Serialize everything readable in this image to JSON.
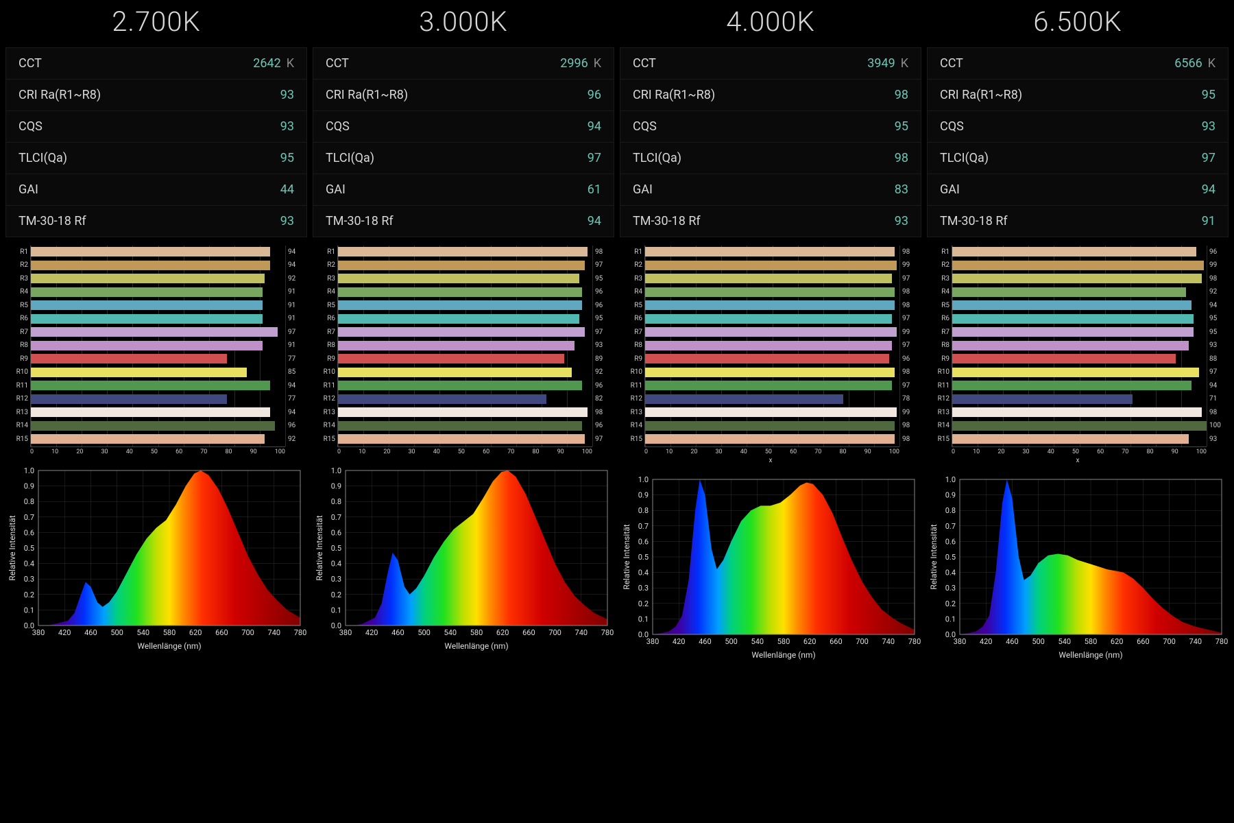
{
  "bar_colors": {
    "R1": "#d8b896",
    "R2": "#c09858",
    "R3": "#c0c060",
    "R4": "#78a860",
    "R5": "#60a8c0",
    "R6": "#50b8b0",
    "R7": "#c0a0d0",
    "R8": "#c090c8",
    "R9": "#d05050",
    "R10": "#e8e060",
    "R11": "#509850",
    "R12": "#404880",
    "R13": "#f0e8e0",
    "R14": "#506840",
    "R15": "#e0b090"
  },
  "bar_xaxis_ticks": [
    0,
    10,
    20,
    30,
    40,
    50,
    60,
    70,
    80,
    90,
    100
  ],
  "metric_labels": {
    "cct": "CCT",
    "cri": "CRI Ra(R1~R8)",
    "cqs": "CQS",
    "tlci": "TLCI(Qa)",
    "gai": "GAI",
    "tm30": "TM-30-18 Rf"
  },
  "spectrum_axes": {
    "xlabel": "Wellenlänge (nm)",
    "ylabel": "Relative Intensität",
    "xmin": 380,
    "xmax": 780,
    "ymin": 0,
    "ymax": 1.0,
    "xticks": [
      380,
      420,
      460,
      500,
      540,
      580,
      620,
      660,
      700,
      740,
      780
    ],
    "yticks": [
      0.0,
      0.1,
      0.2,
      0.3,
      0.4,
      0.5,
      0.6,
      0.7,
      0.8,
      0.9,
      1.0
    ]
  },
  "spectrum_gradient_stops": [
    {
      "nm": 380,
      "c": "#3a0060"
    },
    {
      "nm": 420,
      "c": "#4000a0"
    },
    {
      "nm": 450,
      "c": "#0030ff"
    },
    {
      "nm": 480,
      "c": "#00a0ff"
    },
    {
      "nm": 500,
      "c": "#00d080"
    },
    {
      "nm": 530,
      "c": "#20e020"
    },
    {
      "nm": 560,
      "c": "#c0e000"
    },
    {
      "nm": 580,
      "c": "#ffe000"
    },
    {
      "nm": 600,
      "c": "#ff9000"
    },
    {
      "nm": 630,
      "c": "#ff3000"
    },
    {
      "nm": 680,
      "c": "#d00000"
    },
    {
      "nm": 780,
      "c": "#800000"
    }
  ],
  "columns": [
    {
      "title": "2.700K",
      "metrics": {
        "cct": "2642",
        "cct_unit": "K",
        "cri": "93",
        "cqs": "93",
        "tlci": "95",
        "gai": "44",
        "tm30": "93"
      },
      "bars": {
        "R1": 94,
        "R2": 94,
        "R3": 92,
        "R4": 91,
        "R5": 91,
        "R6": 91,
        "R7": 97,
        "R8": 91,
        "R9": 77,
        "R10": 85,
        "R11": 94,
        "R12": 77,
        "R13": 94,
        "R14": 96,
        "R15": 92
      },
      "bar_xtitle": "",
      "spectrum": [
        [
          380,
          0.0
        ],
        [
          395,
          0.0
        ],
        [
          405,
          0.01
        ],
        [
          415,
          0.02
        ],
        [
          425,
          0.03
        ],
        [
          435,
          0.08
        ],
        [
          445,
          0.2
        ],
        [
          452,
          0.28
        ],
        [
          460,
          0.25
        ],
        [
          470,
          0.15
        ],
        [
          478,
          0.12
        ],
        [
          488,
          0.15
        ],
        [
          500,
          0.22
        ],
        [
          515,
          0.34
        ],
        [
          530,
          0.46
        ],
        [
          545,
          0.56
        ],
        [
          560,
          0.63
        ],
        [
          575,
          0.68
        ],
        [
          590,
          0.78
        ],
        [
          605,
          0.9
        ],
        [
          618,
          0.98
        ],
        [
          628,
          1.0
        ],
        [
          640,
          0.97
        ],
        [
          655,
          0.88
        ],
        [
          670,
          0.75
        ],
        [
          685,
          0.6
        ],
        [
          700,
          0.45
        ],
        [
          715,
          0.33
        ],
        [
          730,
          0.23
        ],
        [
          745,
          0.16
        ],
        [
          760,
          0.1
        ],
        [
          780,
          0.05
        ]
      ]
    },
    {
      "title": "3.000K",
      "metrics": {
        "cct": "2996",
        "cct_unit": "K",
        "cri": "96",
        "cqs": "94",
        "tlci": "97",
        "gai": "61",
        "tm30": "94"
      },
      "bars": {
        "R1": 98,
        "R2": 97,
        "R3": 95,
        "R4": 96,
        "R5": 96,
        "R6": 95,
        "R7": 97,
        "R8": 93,
        "R9": 89,
        "R10": 92,
        "R11": 96,
        "R12": 82,
        "R13": 98,
        "R14": 96,
        "R15": 97
      },
      "bar_xtitle": "",
      "spectrum": [
        [
          380,
          0.0
        ],
        [
          395,
          0.0
        ],
        [
          405,
          0.01
        ],
        [
          415,
          0.03
        ],
        [
          425,
          0.05
        ],
        [
          435,
          0.14
        ],
        [
          445,
          0.35
        ],
        [
          452,
          0.47
        ],
        [
          460,
          0.42
        ],
        [
          470,
          0.25
        ],
        [
          478,
          0.2
        ],
        [
          488,
          0.24
        ],
        [
          500,
          0.32
        ],
        [
          515,
          0.44
        ],
        [
          530,
          0.54
        ],
        [
          545,
          0.62
        ],
        [
          560,
          0.67
        ],
        [
          575,
          0.72
        ],
        [
          590,
          0.82
        ],
        [
          605,
          0.93
        ],
        [
          618,
          0.99
        ],
        [
          628,
          1.0
        ],
        [
          640,
          0.96
        ],
        [
          655,
          0.85
        ],
        [
          670,
          0.7
        ],
        [
          685,
          0.55
        ],
        [
          700,
          0.4
        ],
        [
          715,
          0.28
        ],
        [
          730,
          0.19
        ],
        [
          745,
          0.13
        ],
        [
          760,
          0.08
        ],
        [
          780,
          0.04
        ]
      ]
    },
    {
      "title": "4.000K",
      "metrics": {
        "cct": "3949",
        "cct_unit": "K",
        "cri": "98",
        "cqs": "95",
        "tlci": "98",
        "gai": "83",
        "tm30": "93"
      },
      "bars": {
        "R1": 98,
        "R2": 99,
        "R3": 97,
        "R4": 98,
        "R5": 98,
        "R6": 97,
        "R7": 99,
        "R8": 97,
        "R9": 96,
        "R10": 98,
        "R11": 97,
        "R12": 78,
        "R13": 99,
        "R14": 98,
        "R15": 98
      },
      "bar_xtitle": "x",
      "spectrum": [
        [
          380,
          0.0
        ],
        [
          395,
          0.01
        ],
        [
          405,
          0.02
        ],
        [
          415,
          0.05
        ],
        [
          425,
          0.12
        ],
        [
          435,
          0.35
        ],
        [
          445,
          0.8
        ],
        [
          452,
          1.0
        ],
        [
          460,
          0.9
        ],
        [
          470,
          0.55
        ],
        [
          478,
          0.42
        ],
        [
          488,
          0.48
        ],
        [
          500,
          0.6
        ],
        [
          515,
          0.73
        ],
        [
          530,
          0.8
        ],
        [
          545,
          0.83
        ],
        [
          560,
          0.83
        ],
        [
          575,
          0.85
        ],
        [
          590,
          0.9
        ],
        [
          605,
          0.96
        ],
        [
          615,
          0.98
        ],
        [
          625,
          0.97
        ],
        [
          640,
          0.9
        ],
        [
          655,
          0.78
        ],
        [
          670,
          0.62
        ],
        [
          685,
          0.47
        ],
        [
          700,
          0.34
        ],
        [
          715,
          0.24
        ],
        [
          730,
          0.16
        ],
        [
          745,
          0.11
        ],
        [
          760,
          0.07
        ],
        [
          780,
          0.03
        ]
      ]
    },
    {
      "title": "6.500K",
      "metrics": {
        "cct": "6566",
        "cct_unit": "K",
        "cri": "95",
        "cqs": "93",
        "tlci": "97",
        "gai": "94",
        "tm30": "91"
      },
      "bars": {
        "R1": 96,
        "R2": 99,
        "R3": 98,
        "R4": 92,
        "R5": 94,
        "R6": 95,
        "R7": 95,
        "R8": 93,
        "R9": 88,
        "R10": 97,
        "R11": 94,
        "R12": 71,
        "R13": 98,
        "R14": 100,
        "R15": 93
      },
      "bar_xtitle": "x",
      "spectrum": [
        [
          380,
          0.0
        ],
        [
          395,
          0.01
        ],
        [
          405,
          0.02
        ],
        [
          415,
          0.05
        ],
        [
          425,
          0.12
        ],
        [
          435,
          0.4
        ],
        [
          445,
          0.85
        ],
        [
          452,
          1.0
        ],
        [
          460,
          0.88
        ],
        [
          470,
          0.5
        ],
        [
          478,
          0.35
        ],
        [
          488,
          0.38
        ],
        [
          500,
          0.46
        ],
        [
          515,
          0.51
        ],
        [
          530,
          0.52
        ],
        [
          545,
          0.51
        ],
        [
          560,
          0.48
        ],
        [
          575,
          0.46
        ],
        [
          590,
          0.44
        ],
        [
          605,
          0.42
        ],
        [
          618,
          0.41
        ],
        [
          630,
          0.4
        ],
        [
          645,
          0.36
        ],
        [
          660,
          0.3
        ],
        [
          675,
          0.23
        ],
        [
          690,
          0.17
        ],
        [
          705,
          0.12
        ],
        [
          720,
          0.08
        ],
        [
          740,
          0.05
        ],
        [
          760,
          0.03
        ],
        [
          780,
          0.01
        ]
      ]
    }
  ]
}
